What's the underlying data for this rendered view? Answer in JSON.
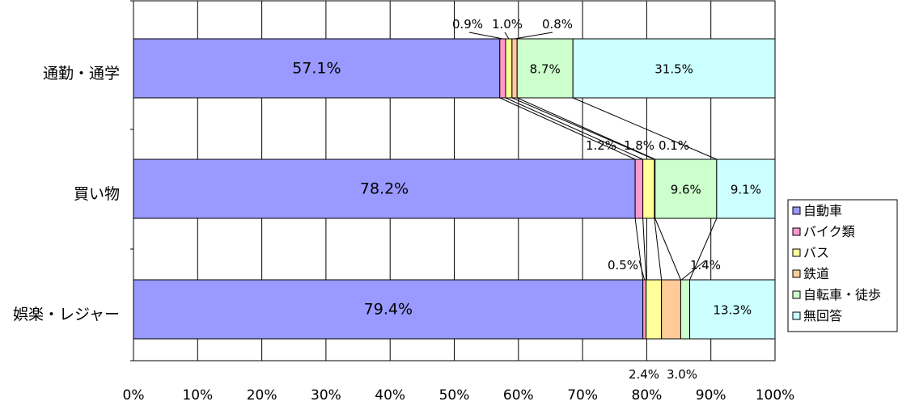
{
  "chart_data": {
    "type": "bar",
    "orientation": "horizontal",
    "stacked": "percent",
    "categories": [
      "通勤・通学",
      "買い物",
      "娯楽・レジャー"
    ],
    "series": [
      {
        "name": "自動車",
        "color": "#9999ff",
        "values": [
          57.1,
          78.2,
          79.4
        ]
      },
      {
        "name": "バイク類",
        "color": "#ff99cc",
        "values": [
          0.9,
          1.2,
          0.5
        ]
      },
      {
        "name": "バス",
        "color": "#ffff99",
        "values": [
          1.0,
          1.8,
          2.4
        ]
      },
      {
        "name": "鉄道",
        "color": "#ffcc99",
        "values": [
          0.8,
          0.1,
          3.0
        ]
      },
      {
        "name": "自転車・徒歩",
        "color": "#ccffcc",
        "values": [
          8.7,
          9.6,
          1.4
        ]
      },
      {
        "name": "無回答",
        "color": "#ccffff",
        "values": [
          31.5,
          9.1,
          13.3
        ]
      }
    ],
    "data_labels": [
      [
        "57.1%",
        "0.9%",
        "1.0%",
        "0.8%",
        "8.7%",
        "31.5%"
      ],
      [
        "78.2%",
        "1.2%",
        "1.8%",
        "0.1%",
        "9.6%",
        "9.1%"
      ],
      [
        "79.4%",
        "0.5%",
        "2.4%",
        "3.0%",
        "1.4%",
        "13.3%"
      ]
    ],
    "xlim": [
      0,
      100
    ],
    "xticks": [
      "0%",
      "10%",
      "20%",
      "30%",
      "40%",
      "50%",
      "60%",
      "70%",
      "80%",
      "90%",
      "100%"
    ],
    "grid": "vertical",
    "legend": "right",
    "series_lines": true
  }
}
